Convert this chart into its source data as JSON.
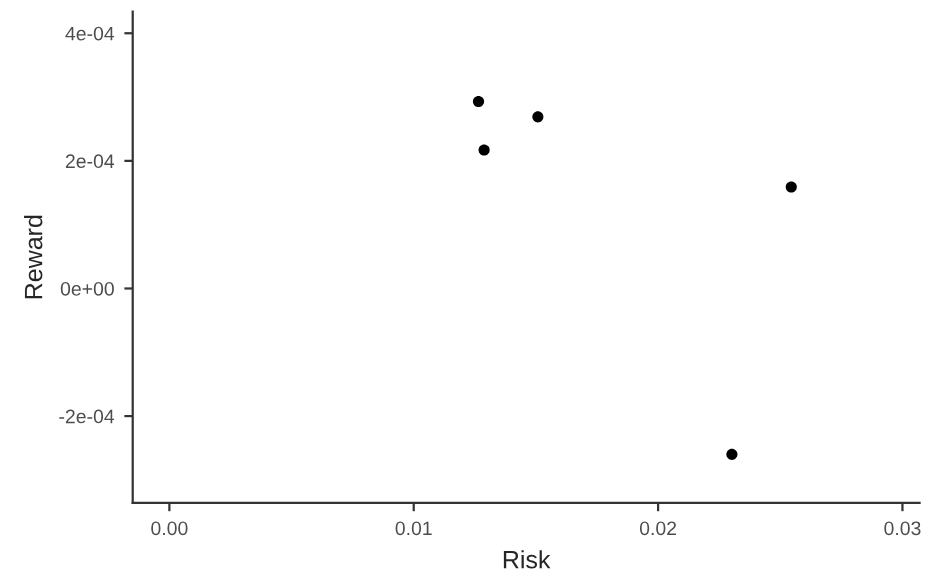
{
  "chart_data": {
    "type": "scatter",
    "xlabel": "Risk",
    "ylabel": "Reward",
    "x": [
      0.01265,
      0.01288,
      0.01508,
      0.02545,
      0.02302
    ],
    "values": [
      0.000293,
      0.000217,
      0.000269,
      0.000159,
      -0.00026
    ],
    "color": "#000000",
    "marker": "circle",
    "grid": false,
    "legend": false,
    "xlim": [
      -0.0015,
      0.0307
    ],
    "ylim": [
      -0.000336,
      0.000434
    ],
    "xticks": [
      {
        "value": 0,
        "label": "0.00"
      },
      {
        "value": 0.01,
        "label": "0.01"
      },
      {
        "value": 0.02,
        "label": "0.02"
      },
      {
        "value": 0.03,
        "label": "0.03"
      }
    ],
    "yticks": [
      {
        "value": -0.0002,
        "label": "-2e-04"
      },
      {
        "value": 0,
        "label": "0e+00"
      },
      {
        "value": 0.0002,
        "label": "2e-04"
      },
      {
        "value": 0.0004,
        "label": "4e-04"
      }
    ]
  }
}
